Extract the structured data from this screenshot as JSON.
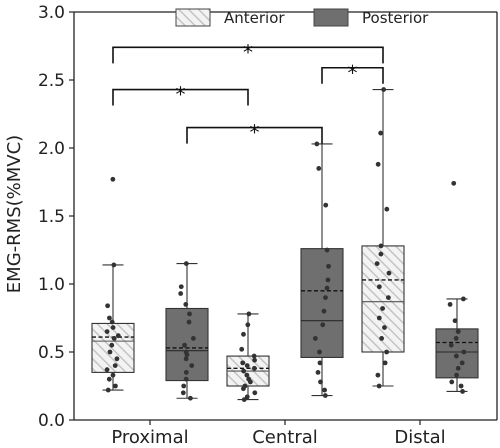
{
  "chart_data": {
    "type": "box",
    "ylabel": "EMG-RMS(%MVC)",
    "ylim": [
      0,
      3.0
    ],
    "yticks": [
      "0.0",
      "0.5",
      "1.0",
      "1.5",
      "2.0",
      "2.5",
      "3.0"
    ],
    "categories": [
      "Proximal",
      "Central",
      "Distal"
    ],
    "legend": {
      "placement": "top-right"
    },
    "series": [
      {
        "name": "Anterior",
        "fill": "#f3f3f3",
        "hatch": true,
        "boxes": [
          {
            "q1": 0.35,
            "median": 0.58,
            "mean": 0.61,
            "q3": 0.71,
            "whisker_low": 0.22,
            "whisker_high": 1.14,
            "points": [
              1.77,
              1.14,
              0.84,
              0.75,
              0.72,
              0.68,
              0.65,
              0.62,
              0.6,
              0.55,
              0.5,
              0.45,
              0.4,
              0.37,
              0.33,
              0.3,
              0.25,
              0.22
            ]
          },
          {
            "q1": 0.25,
            "median": 0.36,
            "mean": 0.38,
            "q3": 0.47,
            "whisker_low": 0.15,
            "whisker_high": 0.78,
            "points": [
              0.78,
              0.7,
              0.63,
              0.52,
              0.47,
              0.44,
              0.42,
              0.4,
              0.38,
              0.36,
              0.33,
              0.3,
              0.28,
              0.25,
              0.23,
              0.2,
              0.17,
              0.15
            ]
          },
          {
            "q1": 0.5,
            "median": 0.87,
            "mean": 1.03,
            "q3": 1.28,
            "whisker_low": 0.25,
            "whisker_high": 2.43,
            "points": [
              2.43,
              2.11,
              1.88,
              1.55,
              1.28,
              1.22,
              1.15,
              1.08,
              0.98,
              0.9,
              0.82,
              0.75,
              0.68,
              0.6,
              0.5,
              0.42,
              0.33,
              0.25
            ]
          }
        ]
      },
      {
        "name": "Posterior",
        "fill": "#6f6f6f",
        "hatch": false,
        "boxes": [
          {
            "q1": 0.29,
            "median": 0.51,
            "mean": 0.53,
            "q3": 0.82,
            "whisker_low": 0.16,
            "whisker_high": 1.15,
            "points": [
              1.15,
              0.98,
              0.93,
              0.85,
              0.78,
              0.72,
              0.6,
              0.55,
              0.5,
              0.48,
              0.45,
              0.4,
              0.35,
              0.3,
              0.25,
              0.2,
              0.16
            ]
          },
          {
            "q1": 0.46,
            "median": 0.73,
            "mean": 0.95,
            "q3": 1.26,
            "whisker_low": 0.18,
            "whisker_high": 2.03,
            "points": [
              2.03,
              1.85,
              1.58,
              1.25,
              1.13,
              1.03,
              0.97,
              0.9,
              0.8,
              0.7,
              0.6,
              0.5,
              0.42,
              0.35,
              0.28,
              0.22,
              0.18
            ]
          },
          {
            "q1": 0.31,
            "median": 0.5,
            "mean": 0.57,
            "q3": 0.67,
            "whisker_low": 0.21,
            "whisker_high": 0.89,
            "points": [
              1.74,
              0.89,
              0.85,
              0.73,
              0.65,
              0.6,
              0.55,
              0.5,
              0.47,
              0.42,
              0.38,
              0.33,
              0.28,
              0.25,
              0.21
            ]
          }
        ]
      }
    ],
    "significance": [
      {
        "label": "*",
        "from": [
          0,
          0
        ],
        "to": [
          2,
          0
        ],
        "y": 2.74
      },
      {
        "label": "*",
        "from": [
          0,
          0
        ],
        "to": [
          1,
          0
        ],
        "y": 2.43
      },
      {
        "label": "*",
        "from": [
          1,
          1
        ],
        "to": [
          2,
          0
        ],
        "y": 2.59
      },
      {
        "label": "*",
        "from": [
          0,
          1
        ],
        "to": [
          1,
          1
        ],
        "y": 2.15
      }
    ]
  }
}
